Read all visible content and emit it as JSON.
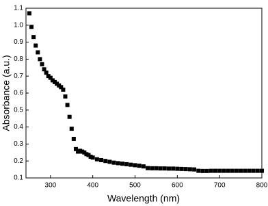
{
  "chart_data": {
    "type": "scatter",
    "x_label": "Wavelength (nm)",
    "y_label": "Absorbance (a.u.)",
    "xlim": [
      242,
      800
    ],
    "xticks": [
      300,
      400,
      500,
      600,
      700,
      800
    ],
    "ylim": [
      0.1,
      1.1
    ],
    "yticks": [
      0.1,
      0.2,
      0.3,
      0.4,
      0.5,
      0.6,
      0.7,
      0.8,
      0.9,
      {
        "value": 1.0,
        "label": "1.0"
      },
      1.1
    ],
    "color": "#000000",
    "x": [
      250,
      255,
      260,
      265,
      270,
      275,
      280,
      285,
      290,
      295,
      300,
      305,
      310,
      315,
      320,
      325,
      330,
      335,
      340,
      345,
      350,
      355,
      360,
      365,
      370,
      375,
      380,
      385,
      390,
      395,
      400,
      410,
      420,
      430,
      440,
      450,
      460,
      470,
      480,
      490,
      500,
      510,
      520,
      530,
      540,
      550,
      560,
      570,
      580,
      590,
      600,
      610,
      620,
      630,
      640,
      650,
      660,
      670,
      680,
      690,
      700,
      710,
      720,
      730,
      740,
      750,
      760,
      770,
      780,
      790,
      800
    ],
    "values": [
      1.07,
      0.99,
      0.93,
      0.88,
      0.84,
      0.8,
      0.77,
      0.74,
      0.72,
      0.7,
      0.69,
      0.675,
      0.665,
      0.655,
      0.645,
      0.635,
      0.62,
      0.58,
      0.53,
      0.46,
      0.39,
      0.33,
      0.27,
      0.255,
      0.26,
      0.255,
      0.25,
      0.24,
      0.235,
      0.225,
      0.22,
      0.21,
      0.205,
      0.2,
      0.195,
      0.19,
      0.187,
      0.184,
      0.181,
      0.178,
      0.175,
      0.172,
      0.168,
      0.158,
      0.157,
      0.157,
      0.156,
      0.156,
      0.155,
      0.155,
      0.154,
      0.153,
      0.152,
      0.151,
      0.15,
      0.142,
      0.141,
      0.141,
      0.142,
      0.142,
      0.142,
      0.142,
      0.142,
      0.142,
      0.142,
      0.142,
      0.142,
      0.142,
      0.142,
      0.142,
      0.142
    ]
  }
}
